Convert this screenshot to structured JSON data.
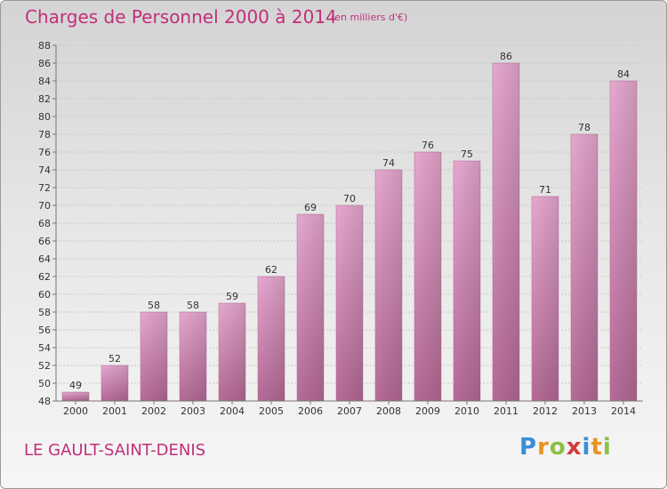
{
  "header": {
    "title": "Charges de Personnel 2000 à 2014",
    "subtitle": "(en milliers d'€)"
  },
  "footer": {
    "city": "LE GAULT-SAINT-DENIS",
    "logo": "Proxiti"
  },
  "colors": {
    "bar": "#c0307a",
    "accent": "#c0307a"
  },
  "chart_data": {
    "type": "bar",
    "title": "Charges de Personnel 2000 à 2014",
    "subtitle": "(en milliers d'€)",
    "categories": [
      "2000",
      "2001",
      "2002",
      "2003",
      "2004",
      "2005",
      "2006",
      "2007",
      "2008",
      "2009",
      "2010",
      "2011",
      "2012",
      "2013",
      "2014"
    ],
    "values": [
      49,
      52,
      58,
      58,
      59,
      62,
      69,
      70,
      74,
      76,
      75,
      86,
      71,
      78,
      84
    ],
    "ylim": [
      48,
      88
    ],
    "yticks": [
      48,
      50,
      52,
      54,
      56,
      58,
      60,
      62,
      64,
      66,
      68,
      70,
      72,
      74,
      76,
      78,
      80,
      82,
      84,
      86,
      88
    ],
    "grid": true,
    "data_labels": true
  }
}
